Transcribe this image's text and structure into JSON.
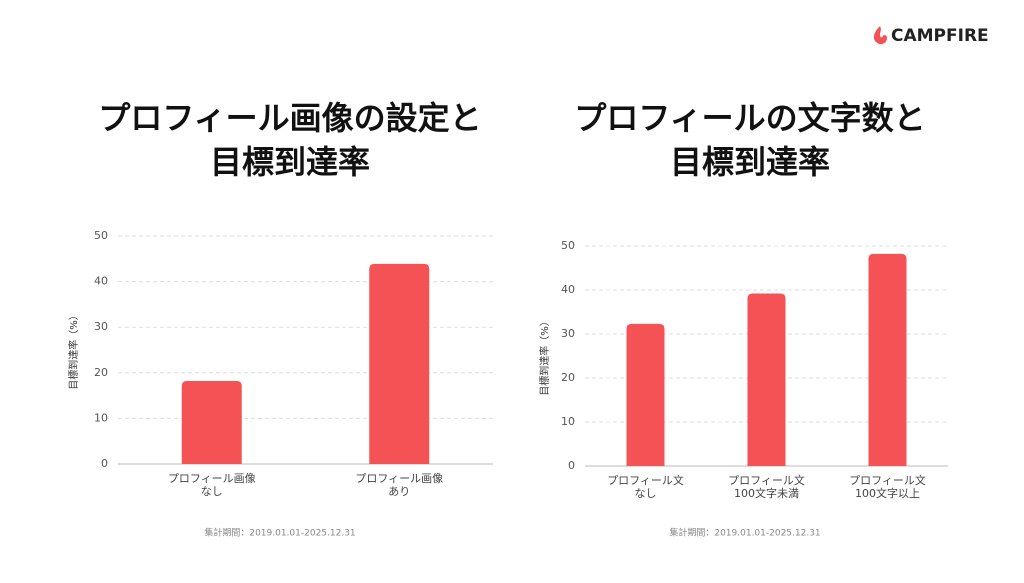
{
  "brand": "CAMPFIRE",
  "chart_data": [
    {
      "type": "bar",
      "title": "プロフィール画像の設定と\n目標到達率",
      "y_label": "目標到達率（%）",
      "categories": [
        "プロフィール画像\nなし",
        "プロフィール画像\nあり"
      ],
      "values": [
        18.2,
        43.9
      ],
      "color": "#f55256",
      "ylim": [
        0,
        50
      ],
      "yticks": [
        0,
        10,
        20,
        30,
        40,
        50
      ],
      "grid": true,
      "note": "集計期間：2019.01.01-2025.12.31"
    },
    {
      "type": "bar",
      "title": "プロフィールの文字数と\n目標到達率",
      "y_label": "目標到達率（%）",
      "categories": [
        "プロフィール文\nなし",
        "プロフィール文\n100文字未満",
        "プロフィール文\n100文字以上"
      ],
      "values": [
        32.3,
        39.2,
        48.2
      ],
      "color": "#f55256",
      "ylim": [
        0,
        50
      ],
      "yticks": [
        0,
        10,
        20,
        30,
        40,
        50
      ],
      "grid": true,
      "note": "集計期間：2019.01.01-2025.12.31"
    }
  ]
}
